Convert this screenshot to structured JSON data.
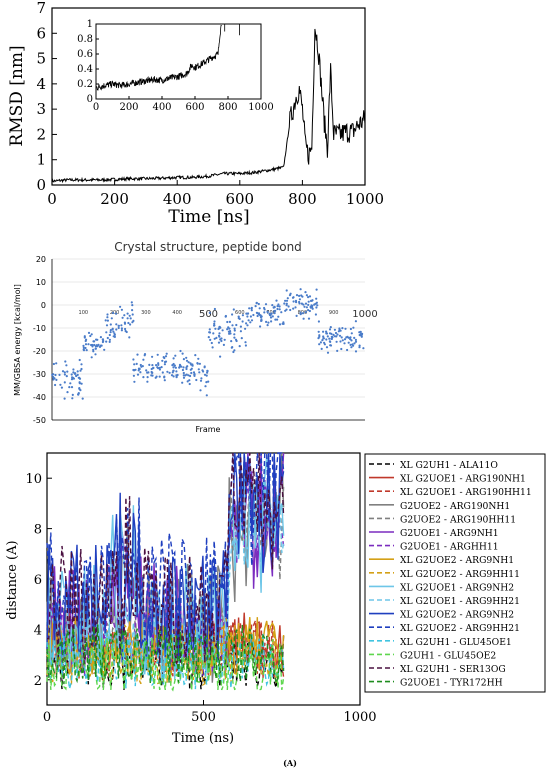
{
  "chart_data": [
    {
      "type": "line",
      "xlabel": "Time [ns]",
      "ylabel": "RMSD [nm]",
      "xlim": [
        0,
        1000
      ],
      "ylim": [
        0,
        7
      ],
      "x_ticks": [
        "0",
        "200",
        "400",
        "600",
        "800",
        "1000"
      ],
      "y_ticks": [
        "0",
        "1",
        "2",
        "3",
        "4",
        "5",
        "6",
        "7"
      ],
      "series": [
        {
          "x": [
            0,
            50,
            100,
            150,
            200,
            250,
            300,
            350,
            400,
            450,
            500,
            550,
            600,
            650,
            700,
            740,
            760,
            780,
            790,
            800,
            810,
            820,
            830,
            840,
            850,
            860,
            870,
            880,
            890,
            900,
            920,
            940,
            960,
            980,
            1000
          ],
          "values": [
            0.15,
            0.2,
            0.2,
            0.2,
            0.22,
            0.25,
            0.25,
            0.27,
            0.3,
            0.3,
            0.35,
            0.45,
            0.45,
            0.5,
            0.6,
            0.7,
            2.5,
            3.5,
            3.8,
            3.0,
            1.5,
            1.2,
            1.5,
            6.3,
            5.5,
            4.0,
            2.5,
            1.5,
            4.5,
            2.0,
            2.0,
            2.1,
            2.1,
            2.4,
            2.6
          ]
        }
      ],
      "inset": {
        "xlim": [
          0,
          1000
        ],
        "ylim": [
          0,
          1
        ],
        "x_ticks": [
          "0",
          "200",
          "400",
          "600",
          "800",
          "1000"
        ],
        "y_ticks": [
          "0",
          "0.2",
          "0.4",
          "0.6",
          "0.8",
          "1"
        ],
        "x": [
          0,
          50,
          100,
          150,
          200,
          250,
          300,
          350,
          400,
          450,
          500,
          550,
          580,
          600,
          650,
          700,
          740,
          750,
          760
        ],
        "values": [
          0.15,
          0.18,
          0.2,
          0.18,
          0.2,
          0.22,
          0.24,
          0.26,
          0.25,
          0.28,
          0.3,
          0.34,
          0.45,
          0.42,
          0.48,
          0.55,
          0.6,
          0.85,
          1.0
        ]
      }
    },
    {
      "type": "scatter",
      "title": "Crystal structure, peptide bond",
      "xlabel": "Frame",
      "ylabel": "MM/GBSA energy [kcal/mol]",
      "xlim": [
        0,
        1000
      ],
      "ylim": [
        -50,
        20
      ],
      "y_ticks": [
        "20",
        "10",
        "0",
        "-10",
        "-20",
        "-30",
        "-40",
        "-50"
      ],
      "x_ticks": [
        "100",
        "200",
        "300",
        "400",
        "500",
        "600",
        "700",
        "800",
        "900",
        "1000"
      ],
      "segments": [
        {
          "x_range": [
            0,
            100
          ],
          "center": -32,
          "spread": 9
        },
        {
          "x_range": [
            100,
            170
          ],
          "center": -18,
          "spread": 7
        },
        {
          "x_range": [
            170,
            260
          ],
          "center": -8,
          "spread": 9
        },
        {
          "x_range": [
            260,
            470
          ],
          "center": -28,
          "spread": 7
        },
        {
          "x_range": [
            470,
            500
          ],
          "center": -30,
          "spread": 8
        },
        {
          "x_range": [
            500,
            620
          ],
          "center": -12,
          "spread": 9
        },
        {
          "x_range": [
            620,
            740
          ],
          "center": -4,
          "spread": 7
        },
        {
          "x_range": [
            740,
            850
          ],
          "center": 1,
          "spread": 6
        },
        {
          "x_range": [
            850,
            1000
          ],
          "center": -14,
          "spread": 6
        }
      ]
    },
    {
      "type": "line",
      "xlabel": "Time (ns)",
      "ylabel": "distance (A)",
      "xlim": [
        0,
        1000
      ],
      "ylim": [
        1,
        11
      ],
      "x_ticks": [
        "0",
        "500",
        "1000"
      ],
      "y_ticks": [
        "2",
        "4",
        "6",
        "8",
        "10"
      ],
      "series": [
        {
          "name": "XL G2UH1 - ALA11O",
          "color": "#000000",
          "dash": "5,3",
          "base": 2.8
        },
        {
          "name": "XL G2UOE1 - ARG190NH1",
          "color": "#c0392b",
          "dash": "",
          "base": 3.5
        },
        {
          "name": "XL G2UOE1 - ARG190HH11",
          "color": "#c0392b",
          "dash": "5,3",
          "base": 3.2
        },
        {
          "name": "G2UOE2 - ARG190NH1",
          "color": "#808080",
          "dash": "",
          "base": 4.2
        },
        {
          "name": "G2UOE2 - ARG190HH11",
          "color": "#808080",
          "dash": "5,3",
          "base": 3.8
        },
        {
          "name": "G2UOE1 - ARG9NH1",
          "color": "#7b2cbf",
          "dash": "",
          "base": 4.5
        },
        {
          "name": "G2UOE1 - ARGHH11",
          "color": "#7b2cbf",
          "dash": "5,3",
          "base": 4.0
        },
        {
          "name": "XL G2UOE2 - ARG9NH1",
          "color": "#d4a017",
          "dash": "",
          "base": 3.3
        },
        {
          "name": "XL G2UOE2 - ARG9HH11",
          "color": "#d4a017",
          "dash": "5,3",
          "base": 3.0
        },
        {
          "name": "XL G2UOE1 - ARG9NH2",
          "color": "#6ec6e8",
          "dash": "",
          "base": 4.3
        },
        {
          "name": "XL G2UOE1 - ARG9HH21",
          "color": "#6ec6e8",
          "dash": "5,3",
          "base": 3.7
        },
        {
          "name": "XL G2UOE2 - ARG9NH2",
          "color": "#1f3fbf",
          "dash": "",
          "base": 5.0
        },
        {
          "name": "XL G2UOE2 - ARG9HH21",
          "color": "#1f3fbf",
          "dash": "5,3",
          "base": 5.5
        },
        {
          "name": "XL G2UH1 - GLU45OE1",
          "color": "#40c4e0",
          "dash": "5,3",
          "base": 2.7
        },
        {
          "name": "G2UH1 - GLU45OE2",
          "color": "#5ed64e",
          "dash": "5,3",
          "base": 2.5
        },
        {
          "name": "XL G2UH1 - SER13OG",
          "color": "#4a1040",
          "dash": "5,3",
          "base": 5.0
        },
        {
          "name": "G2UOE1 - TYR172HH",
          "color": "#1e8c1e",
          "dash": "5,3",
          "base": 3.0
        }
      ]
    }
  ],
  "panel_labels": {
    "bottom": "(A)"
  },
  "colors": {
    "scatter_point": "#4a7cc9"
  }
}
